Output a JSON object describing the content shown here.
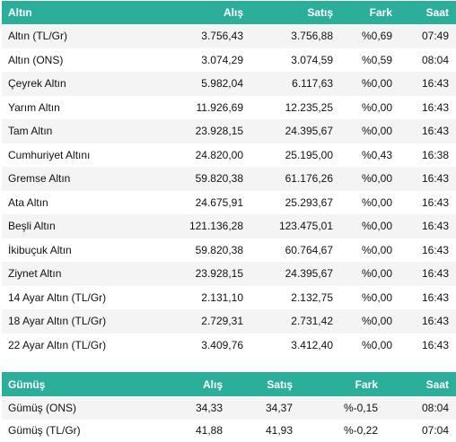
{
  "gold": {
    "headers": {
      "name": "Altın",
      "buy": "Alış",
      "sell": "Satış",
      "change": "Fark",
      "time": "Saat"
    },
    "rows": [
      {
        "name": "Altın (TL/Gr)",
        "buy": "3.756,43",
        "sell": "3.756,88",
        "change": "%0,69",
        "time": "07:49"
      },
      {
        "name": "Altın (ONS)",
        "buy": "3.074,29",
        "sell": "3.074,59",
        "change": "%0,59",
        "time": "08:04"
      },
      {
        "name": "Çeyrek Altın",
        "buy": "5.982,04",
        "sell": "6.117,63",
        "change": "%0,00",
        "time": "16:43"
      },
      {
        "name": "Yarım Altın",
        "buy": "11.926,69",
        "sell": "12.235,25",
        "change": "%0,00",
        "time": "16:43"
      },
      {
        "name": "Tam Altın",
        "buy": "23.928,15",
        "sell": "24.395,67",
        "change": "%0,00",
        "time": "16:43"
      },
      {
        "name": "Cumhuriyet Altını",
        "buy": "24.820,00",
        "sell": "25.195,00",
        "change": "%0,43",
        "time": "16:38"
      },
      {
        "name": "Gremse Altın",
        "buy": "59.820,38",
        "sell": "61.176,26",
        "change": "%0,00",
        "time": "16:43"
      },
      {
        "name": "Ata Altın",
        "buy": "24.675,91",
        "sell": "25.293,67",
        "change": "%0,00",
        "time": "16:43"
      },
      {
        "name": "Beşli Altın",
        "buy": "121.136,28",
        "sell": "123.475,01",
        "change": "%0,00",
        "time": "16:43"
      },
      {
        "name": "İkibuçuk Altın",
        "buy": "59.820,38",
        "sell": "60.764,67",
        "change": "%0,00",
        "time": "16:43"
      },
      {
        "name": "Ziynet Altın",
        "buy": "23.928,15",
        "sell": "24.395,67",
        "change": "%0,00",
        "time": "16:43"
      },
      {
        "name": "14 Ayar Altın (TL/Gr)",
        "buy": "2.131,10",
        "sell": "2.132,75",
        "change": "%0,00",
        "time": "16:43"
      },
      {
        "name": "18 Ayar Altın (TL/Gr)",
        "buy": "2.729,31",
        "sell": "2.731,42",
        "change": "%0,00",
        "time": "16:43"
      },
      {
        "name": "22 Ayar Altın (TL/Gr)",
        "buy": "3.409,76",
        "sell": "3.412,40",
        "change": "%0,00",
        "time": "16:43"
      }
    ]
  },
  "silver": {
    "headers": {
      "name": "Gümüş",
      "buy": "Alış",
      "sell": "Satış",
      "change": "Fark",
      "time": "Saat"
    },
    "rows": [
      {
        "name": "Gümüş (ONS)",
        "buy": "34,33",
        "sell": "34,37",
        "change": "%-0,15",
        "time": "08:04"
      },
      {
        "name": "Gümüş (TL/Gr)",
        "buy": "41,88",
        "sell": "41,93",
        "change": "%-0,22",
        "time": "07:04"
      }
    ]
  },
  "colors": {
    "header_bg": "#2baf9a",
    "header_text": "#ffffff",
    "row_alt_bg": "#f4f4f4"
  }
}
